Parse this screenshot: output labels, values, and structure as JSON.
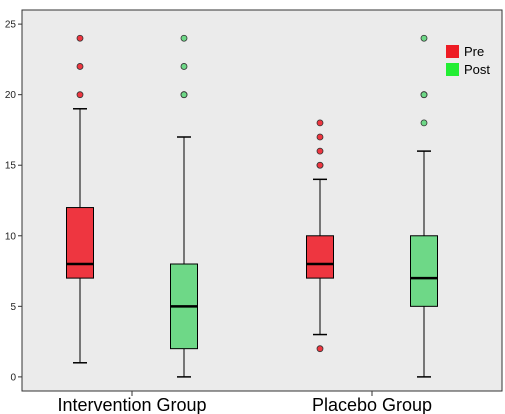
{
  "chart_data": {
    "type": "boxplot",
    "title": "",
    "xlabel": "",
    "ylabel": "",
    "ylim": [
      -1,
      26
    ],
    "yticks": [
      0,
      5,
      10,
      15,
      20,
      25
    ],
    "grid": false,
    "legend_position": "top-right",
    "background": "#ebebeb",
    "categories": [
      "Intervention Group",
      "Placebo Group"
    ],
    "series": [
      {
        "name": "Pre",
        "color": "#ee3640",
        "boxes": [
          {
            "min": 1,
            "q1": 7,
            "median": 8,
            "q3": 12,
            "max": 19,
            "outliers": [
              20,
              22,
              24
            ]
          },
          {
            "min": 3,
            "q1": 7,
            "median": 8,
            "q3": 10,
            "max": 14,
            "outliers": [
              2,
              15,
              15,
              16,
              17,
              18
            ]
          }
        ]
      },
      {
        "name": "Post",
        "color": "#6ed887",
        "boxes": [
          {
            "min": 0,
            "q1": 2,
            "median": 5,
            "q3": 8,
            "max": 17,
            "outliers": [
              20,
              20,
              22,
              24
            ]
          },
          {
            "min": 0,
            "q1": 5,
            "median": 7,
            "q3": 10,
            "max": 16,
            "outliers": [
              18,
              20,
              20,
              24
            ]
          }
        ]
      }
    ]
  }
}
